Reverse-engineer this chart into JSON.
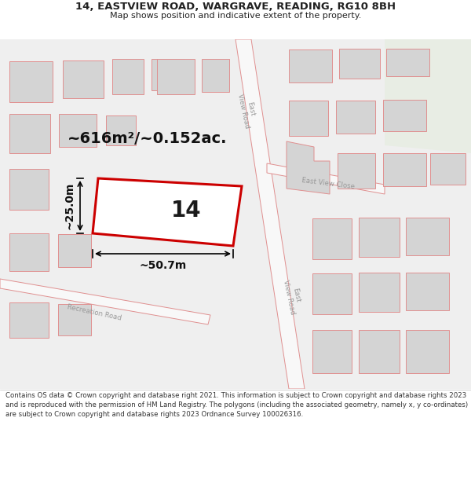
{
  "title_line1": "14, EASTVIEW ROAD, WARGRAVE, READING, RG10 8BH",
  "title_line2": "Map shows position and indicative extent of the property.",
  "footer_text": "Contains OS data © Crown copyright and database right 2021. This information is subject to Crown copyright and database rights 2023 and is reproduced with the permission of HM Land Registry. The polygons (including the associated geometry, namely x, y co-ordinates) are subject to Crown copyright and database rights 2023 Ordnance Survey 100026316.",
  "area_label": "~616m²/~0.152ac.",
  "width_label": "~50.7m",
  "height_label": "~25.0m",
  "plot_number": "14",
  "map_bg": "#f0f0f0",
  "building_fill": "#d4d4d4",
  "building_edge": "#e09090",
  "road_fill": "#f8f8f8",
  "road_edge": "#e09090",
  "highlight_color": "#cc0000",
  "text_color": "#222222",
  "road_label_color": "#999999",
  "footer_bg": "#ffffff",
  "green_color": "#e8ede4"
}
